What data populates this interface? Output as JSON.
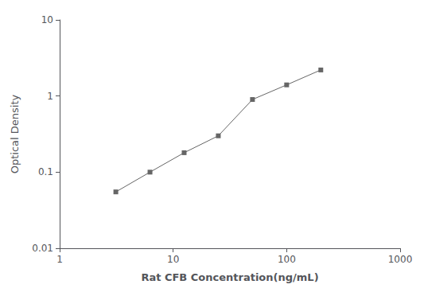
{
  "chart_data": {
    "type": "line",
    "x": [
      3.125,
      6.25,
      12.5,
      25,
      50,
      100,
      200
    ],
    "values": [
      0.055,
      0.1,
      0.18,
      0.3,
      0.9,
      1.4,
      2.2
    ],
    "color": "#666666",
    "marker": "square",
    "xlabel": "Rat CFB Concentration(ng/mL)",
    "ylabel": "Optical Density",
    "xlim": [
      1,
      1000
    ],
    "ylim": [
      0.01,
      10
    ],
    "xticks": [
      1,
      10,
      100,
      1000
    ],
    "yticks": [
      0.01,
      0.1,
      1,
      10
    ],
    "log": true,
    "grid": false
  }
}
